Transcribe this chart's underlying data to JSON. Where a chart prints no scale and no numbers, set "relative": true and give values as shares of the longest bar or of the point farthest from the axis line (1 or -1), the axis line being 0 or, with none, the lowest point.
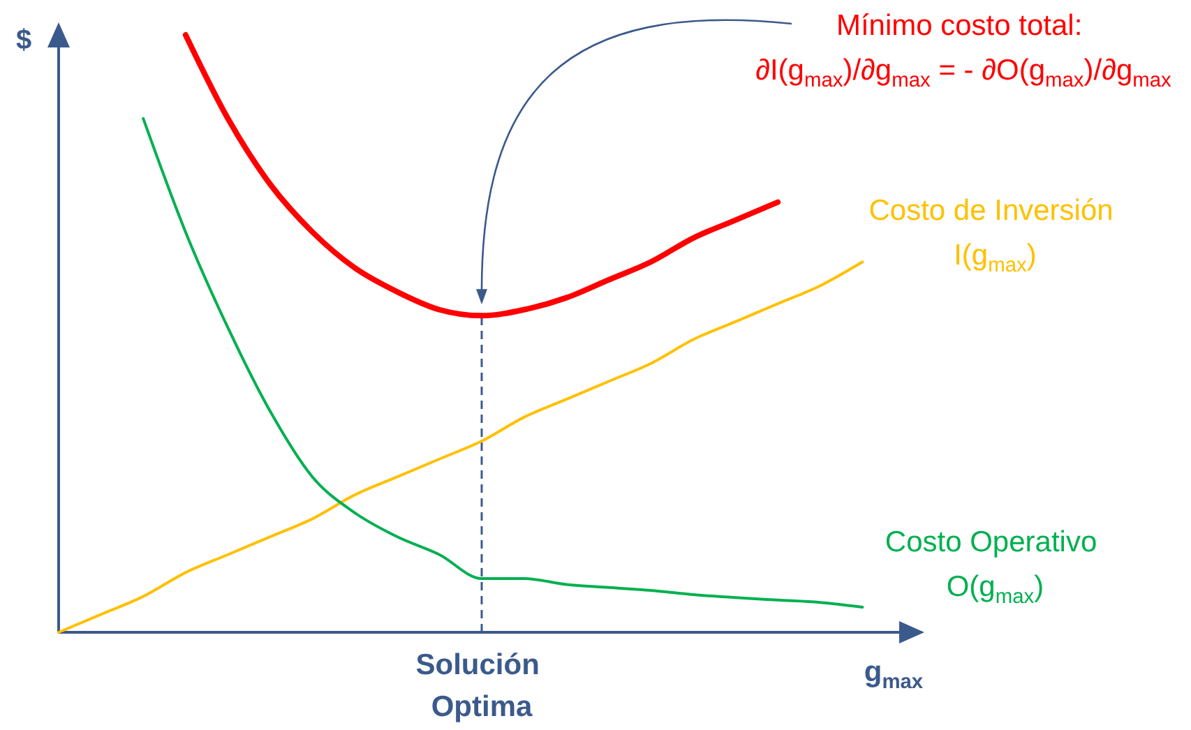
{
  "chart_data": {
    "type": "line",
    "relative": true,
    "ylabel": "$",
    "xlabel": "g$_{max}$",
    "categories": [
      null,
      null,
      null,
      null,
      null,
      null,
      null,
      null,
      null,
      null,
      null,
      null,
      null,
      null,
      null,
      null,
      null,
      null,
      null,
      null,
      null
    ],
    "series": [
      {
        "color": "#ff0000",
        "values": [
          null,
          null,
          null,
          1.0,
          0.86,
          0.75,
          0.67,
          0.61,
          0.57,
          0.54,
          0.53,
          0.54,
          0.56,
          0.59,
          0.62,
          0.66,
          0.69,
          0.72,
          null,
          null,
          null
        ]
      },
      {
        "name": "Costo de Inversión\nI(g$_{max}$)",
        "color": "#ffc000",
        "values": [
          0,
          0.03,
          0.06,
          0.1,
          0.13,
          0.16,
          0.19,
          0.23,
          0.26,
          0.29,
          0.32,
          0.36,
          0.39,
          0.42,
          0.45,
          0.49,
          0.52,
          0.55,
          0.58,
          0.62,
          null
        ]
      },
      {
        "name": "Costo Operativo\nO(g$_{max}$)",
        "color": "#00b050",
        "values": [
          null,
          null,
          0.86,
          0.67,
          0.51,
          0.37,
          0.26,
          0.2,
          0.16,
          0.13,
          0.09,
          0.09,
          0.08,
          0.075,
          0.07,
          0.063,
          0.058,
          0.054,
          0.05,
          0.042,
          null
        ]
      }
    ],
    "annotations": [
      "Mínimo costo total:\n∂I(g$_{max}$)/∂g$_{max}$ = - ∂O(g$_{max}$)/∂g$_{max}$",
      "Solución Optima"
    ]
  }
}
